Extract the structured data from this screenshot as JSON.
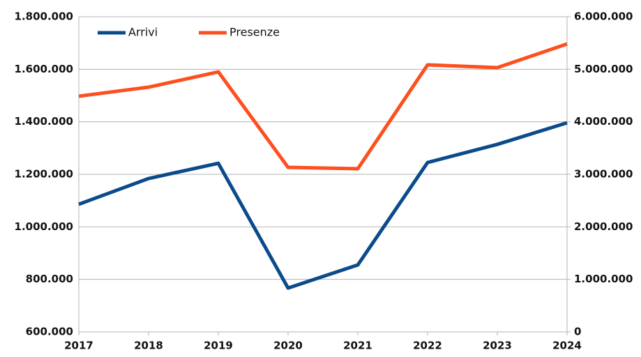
{
  "chart_data": {
    "type": "line",
    "x": [
      2017,
      2018,
      2019,
      2020,
      2021,
      2022,
      2023,
      2024
    ],
    "xlim": [
      2017,
      2024
    ],
    "xticks": [
      2017,
      2018,
      2019,
      2020,
      2021,
      2022,
      2023,
      2024
    ],
    "series": [
      {
        "name": "Arrivi",
        "color": "#0b4a8b",
        "values": [
          1086000,
          1184000,
          1242000,
          767000,
          855000,
          1245000,
          1314000,
          1396000
        ]
      },
      {
        "name": "Presenze",
        "color": "#fd4f1f",
        "axis": "y2",
        "values": [
          4487000,
          4659000,
          4951000,
          3133000,
          3106000,
          5084000,
          5031000,
          5482000
        ]
      }
    ],
    "ylim": [
      600000,
      1800000
    ],
    "yticks": [
      {
        "value": 600000,
        "label": "600.000"
      },
      {
        "value": 800000,
        "label": "800.000"
      },
      {
        "value": 1000000,
        "label": "1.000.000"
      },
      {
        "value": 1200000,
        "label": "1.200.000"
      },
      {
        "value": 1400000,
        "label": "1.400.000"
      },
      {
        "value": 1600000,
        "label": "1.600.000"
      },
      {
        "value": 1800000,
        "label": "1.800.000"
      }
    ],
    "y2lim": [
      0,
      6000000
    ],
    "y2ticks": [
      0,
      {
        "value": 1000000,
        "label": "1.000.000"
      },
      {
        "value": 2000000,
        "label": "2.000.000"
      },
      {
        "value": 3000000,
        "label": "3.000.000"
      },
      {
        "value": 4000000,
        "label": "4.000.000"
      },
      {
        "value": 5000000,
        "label": "5.000.000"
      },
      {
        "value": 6000000,
        "label": "6.000.000"
      }
    ],
    "grid": true,
    "legend": "top-left"
  }
}
